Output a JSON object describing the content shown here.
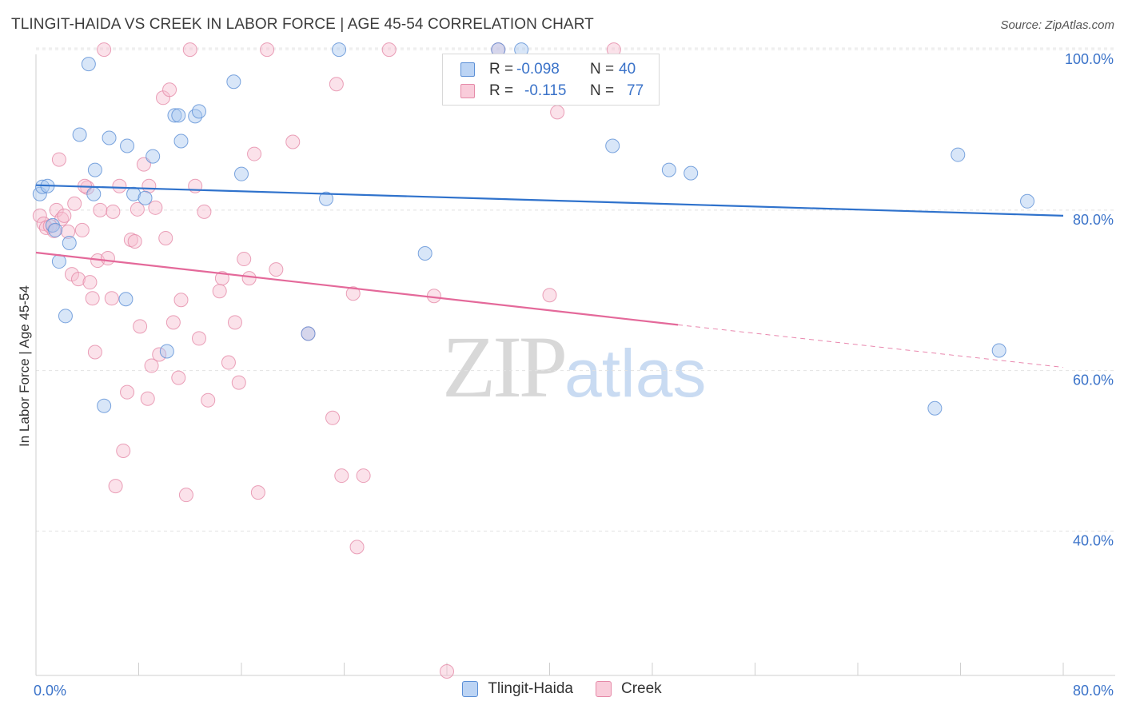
{
  "title": "TLINGIT-HAIDA VS CREEK IN LABOR FORCE | AGE 45-54 CORRELATION CHART",
  "source": "Source: ZipAtlas.com",
  "watermark": {
    "zip": "ZIP",
    "atlas": "atlas"
  },
  "legend": {
    "rows": [
      {
        "r_label": "R =",
        "r_value": "-0.098",
        "n_label": "N =",
        "n_value": "40"
      },
      {
        "r_label": "R =",
        "r_value": "-0.115",
        "n_label": "N =",
        "n_value": "77"
      }
    ]
  },
  "chart_data": {
    "type": "scatter",
    "title": "TLINGIT-HAIDA VS CREEK IN LABOR FORCE | AGE 45-54 CORRELATION CHART",
    "xlabel": "",
    "ylabel": "In Labor Force | Age 45-54",
    "xlim": [
      0,
      80
    ],
    "ylim": [
      22,
      102
    ],
    "x_tick_labels": [
      {
        "value": 0,
        "label": "0.0%"
      },
      {
        "value": 80,
        "label": "80.0%"
      }
    ],
    "y_tick_labels": [
      {
        "value": 40,
        "label": "40.0%"
      },
      {
        "value": 60,
        "label": "60.0%"
      },
      {
        "value": 80,
        "label": "80.0%"
      },
      {
        "value": 100,
        "label": "100.0%"
      }
    ],
    "grid": true,
    "colors": {
      "tlingit_fill": "#a9c8f0",
      "tlingit_stroke": "#5b8fd6",
      "tlingit_line": "#2f72cc",
      "creek_fill": "#f6bfd0",
      "creek_stroke": "#e58aa8",
      "creek_line": "#e4699a",
      "axis_text": "#3b73c9"
    },
    "series": [
      {
        "name": "Tlingit-Haida",
        "points": [
          [
            0.3,
            82.0
          ],
          [
            0.5,
            82.9
          ],
          [
            0.9,
            83.0
          ],
          [
            1.3,
            78.1
          ],
          [
            1.5,
            77.5
          ],
          [
            1.8,
            73.6
          ],
          [
            2.3,
            66.8
          ],
          [
            2.6,
            75.9
          ],
          [
            3.4,
            89.4
          ],
          [
            4.1,
            98.2
          ],
          [
            4.6,
            85.0
          ],
          [
            4.5,
            82.0
          ],
          [
            5.3,
            55.6
          ],
          [
            5.7,
            89.0
          ],
          [
            7.1,
            88.0
          ],
          [
            7.0,
            68.9
          ],
          [
            7.6,
            82.0
          ],
          [
            8.5,
            81.5
          ],
          [
            9.1,
            86.7
          ],
          [
            10.2,
            62.4
          ],
          [
            10.8,
            91.8
          ],
          [
            11.1,
            91.8
          ],
          [
            11.3,
            88.6
          ],
          [
            12.4,
            91.7
          ],
          [
            12.7,
            92.3
          ],
          [
            15.4,
            96.0
          ],
          [
            16.0,
            84.5
          ],
          [
            21.2,
            64.6
          ],
          [
            22.6,
            81.4
          ],
          [
            23.6,
            100.0
          ],
          [
            30.3,
            74.6
          ],
          [
            36.0,
            100.0
          ],
          [
            37.8,
            100.0
          ],
          [
            44.9,
            88.0
          ],
          [
            49.3,
            85.0
          ],
          [
            51.0,
            84.6
          ],
          [
            70.0,
            55.3
          ],
          [
            71.8,
            86.9
          ],
          [
            75.0,
            62.5
          ],
          [
            77.2,
            81.1
          ]
        ]
      },
      {
        "name": "Creek",
        "points": [
          [
            0.3,
            79.3
          ],
          [
            0.6,
            78.3
          ],
          [
            0.8,
            77.8
          ],
          [
            1.1,
            78.0
          ],
          [
            1.4,
            77.4
          ],
          [
            1.6,
            80.0
          ],
          [
            1.8,
            86.3
          ],
          [
            2.0,
            78.9
          ],
          [
            2.2,
            79.3
          ],
          [
            2.5,
            77.3
          ],
          [
            2.8,
            72.0
          ],
          [
            3.0,
            80.8
          ],
          [
            3.3,
            71.4
          ],
          [
            3.6,
            77.5
          ],
          [
            4.0,
            82.8
          ],
          [
            4.2,
            71.0
          ],
          [
            4.4,
            69.0
          ],
          [
            4.6,
            62.3
          ],
          [
            4.8,
            73.7
          ],
          [
            5.0,
            80.0
          ],
          [
            5.3,
            100.0
          ],
          [
            5.6,
            74.0
          ],
          [
            5.9,
            69.0
          ],
          [
            6.2,
            45.6
          ],
          [
            6.5,
            83.0
          ],
          [
            6.8,
            50.0
          ],
          [
            7.1,
            57.3
          ],
          [
            7.4,
            76.3
          ],
          [
            7.7,
            76.1
          ],
          [
            7.9,
            80.1
          ],
          [
            8.1,
            65.5
          ],
          [
            8.4,
            85.7
          ],
          [
            8.7,
            56.5
          ],
          [
            9.0,
            60.6
          ],
          [
            9.3,
            80.3
          ],
          [
            9.6,
            62.0
          ],
          [
            9.9,
            94.0
          ],
          [
            10.1,
            76.5
          ],
          [
            10.4,
            95.0
          ],
          [
            10.7,
            66.0
          ],
          [
            11.1,
            59.1
          ],
          [
            11.3,
            68.8
          ],
          [
            11.7,
            44.5
          ],
          [
            12.0,
            100.0
          ],
          [
            12.4,
            83.0
          ],
          [
            12.7,
            64.0
          ],
          [
            13.1,
            79.8
          ],
          [
            13.4,
            56.3
          ],
          [
            14.5,
            71.5
          ],
          [
            15.0,
            61.0
          ],
          [
            15.5,
            66.0
          ],
          [
            15.8,
            58.5
          ],
          [
            16.2,
            73.9
          ],
          [
            16.6,
            71.5
          ],
          [
            17.0,
            87.0
          ],
          [
            17.3,
            44.8
          ],
          [
            18.0,
            100.0
          ],
          [
            18.7,
            72.6
          ],
          [
            20.0,
            88.5
          ],
          [
            21.2,
            64.6
          ],
          [
            23.1,
            54.1
          ],
          [
            23.4,
            95.7
          ],
          [
            23.8,
            46.9
          ],
          [
            24.7,
            69.6
          ],
          [
            25.0,
            38.0
          ],
          [
            25.5,
            46.9
          ],
          [
            27.5,
            100.0
          ],
          [
            31.0,
            69.3
          ],
          [
            32.0,
            22.5
          ],
          [
            36.0,
            100.0
          ],
          [
            40.0,
            69.4
          ],
          [
            40.6,
            92.2
          ],
          [
            45.0,
            100.0
          ],
          [
            3.8,
            83.0
          ],
          [
            6.0,
            79.8
          ],
          [
            8.8,
            83.0
          ],
          [
            14.3,
            69.9
          ]
        ]
      }
    ],
    "trend_lines": [
      {
        "name": "Tlingit-Haida",
        "x": [
          0,
          80
        ],
        "y": [
          83.1,
          79.3
        ]
      },
      {
        "name": "Creek",
        "x": [
          0,
          50
        ],
        "y": [
          74.7,
          65.7
        ],
        "dashed_extension": {
          "x": [
            50,
            80
          ],
          "y": [
            65.7,
            60.4
          ]
        }
      }
    ]
  }
}
